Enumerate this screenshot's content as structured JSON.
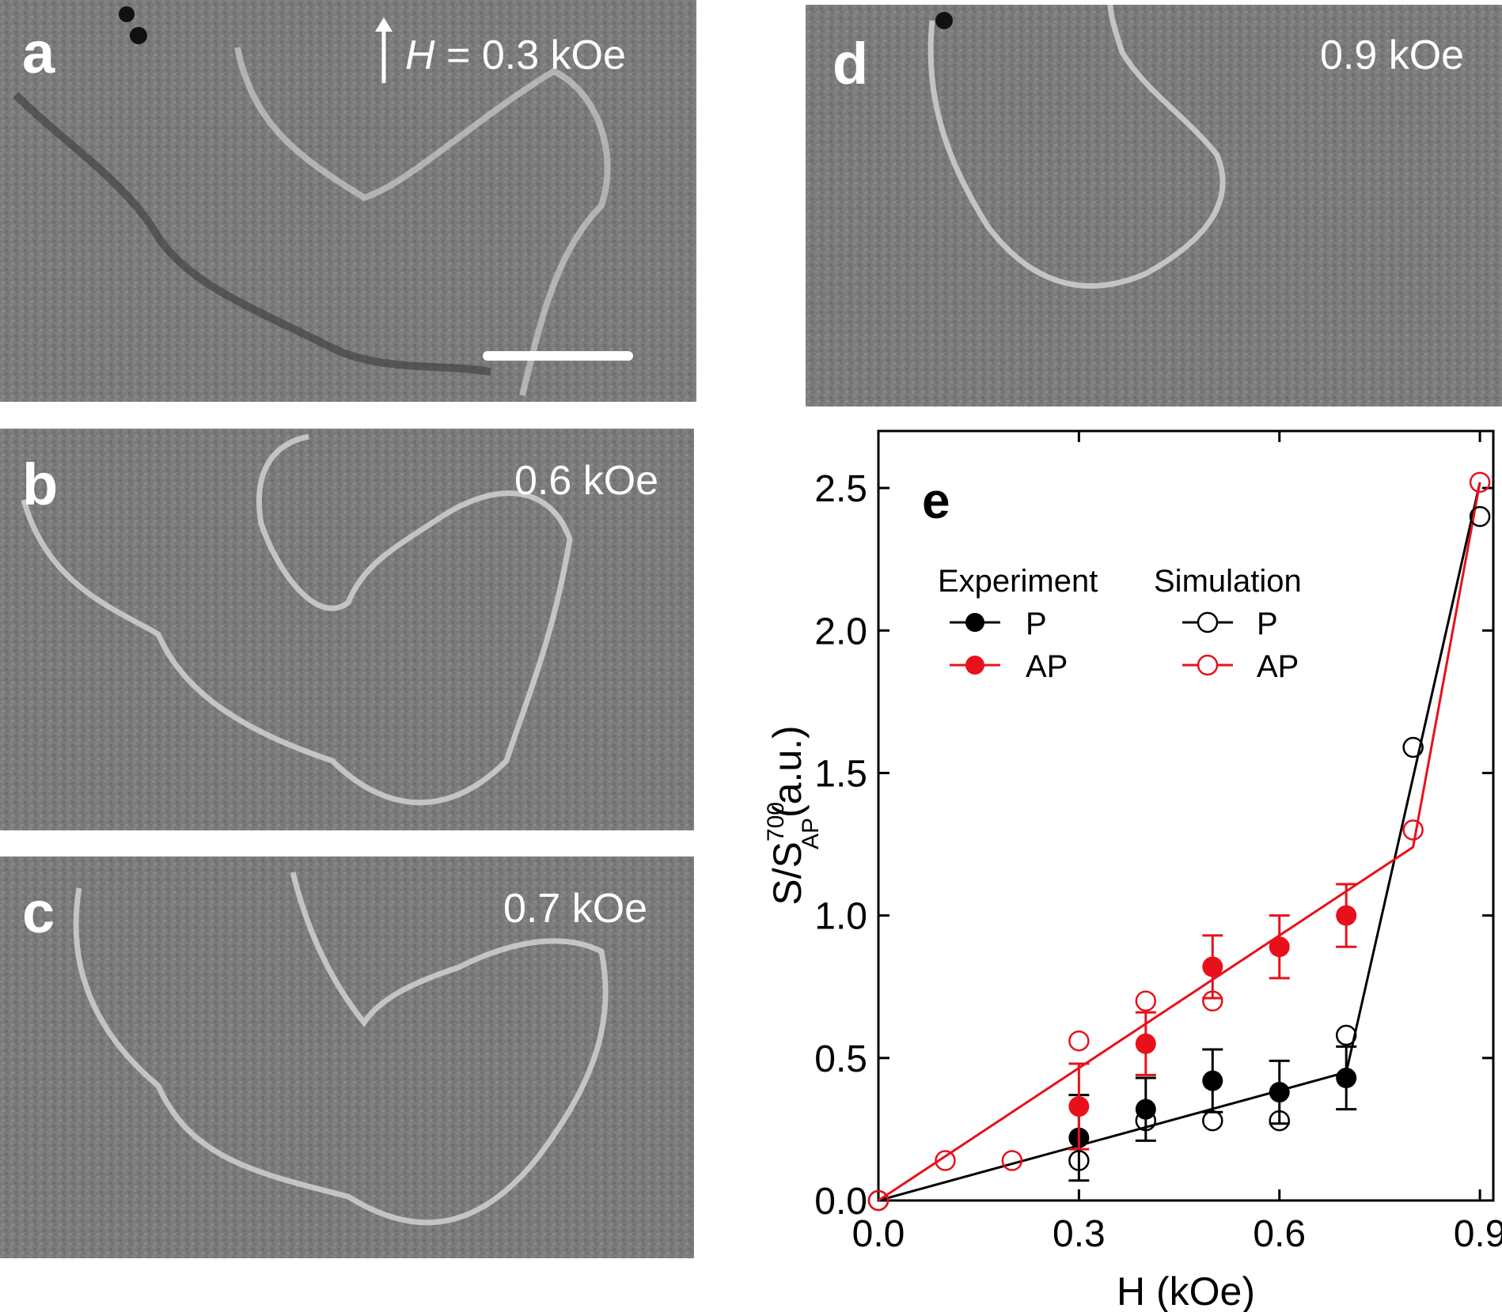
{
  "panels": {
    "a": {
      "label": "a",
      "field_symbol": "H",
      "field_eq": " = 0.3 kOe"
    },
    "b": {
      "label": "b",
      "field": "0.6 kOe"
    },
    "c": {
      "label": "c",
      "field": "0.7 kOe"
    },
    "d": {
      "label": "d",
      "field": "0.9 kOe"
    }
  },
  "chart_data": {
    "type": "scatter",
    "panel_label": "e",
    "xlabel": "H (kOe)",
    "ylabel_main": "S/S",
    "ylabel_sup": "700",
    "ylabel_sub": "AP",
    "ylabel_tail": "(a.u.)",
    "xlim": [
      0.0,
      0.92
    ],
    "ylim": [
      0.0,
      2.7
    ],
    "xticks": [
      0.0,
      0.3,
      0.6,
      0.9
    ],
    "xtick_labels": [
      "0.0",
      "0.3",
      "0.6",
      "0.9"
    ],
    "yticks": [
      0.0,
      0.5,
      1.0,
      1.5,
      2.0,
      2.5
    ],
    "ytick_labels": [
      "0.0",
      "0.5",
      "1.0",
      "1.5",
      "2.0",
      "2.5"
    ],
    "legend": {
      "experiment_title": "Experiment",
      "simulation_title": "Simulation",
      "p_label": "P",
      "ap_label": "AP"
    },
    "colors": {
      "P": "#000000",
      "AP": "#e8111b"
    },
    "series": [
      {
        "name": "Experiment P",
        "group": "experiment",
        "kind": "P",
        "filled": true,
        "x": [
          0.3,
          0.4,
          0.5,
          0.6,
          0.7
        ],
        "y": [
          0.22,
          0.32,
          0.42,
          0.38,
          0.43
        ],
        "err": [
          0.15,
          0.11,
          0.11,
          0.11,
          0.11
        ]
      },
      {
        "name": "Experiment AP",
        "group": "experiment",
        "kind": "AP",
        "filled": true,
        "x": [
          0.3,
          0.4,
          0.5,
          0.6,
          0.7
        ],
        "y": [
          0.33,
          0.55,
          0.82,
          0.89,
          1.0
        ],
        "err": [
          0.15,
          0.11,
          0.11,
          0.11,
          0.11
        ]
      },
      {
        "name": "Simulation P",
        "group": "simulation",
        "kind": "P",
        "filled": false,
        "x": [
          0.0,
          0.3,
          0.4,
          0.5,
          0.6,
          0.7,
          0.8,
          0.9
        ],
        "y": [
          0.0,
          0.14,
          0.28,
          0.28,
          0.28,
          0.58,
          1.59,
          2.4
        ]
      },
      {
        "name": "Simulation AP",
        "group": "simulation",
        "kind": "AP",
        "filled": false,
        "x": [
          0.0,
          0.1,
          0.2,
          0.3,
          0.4,
          0.5,
          0.8,
          0.9
        ],
        "y": [
          0.0,
          0.14,
          0.14,
          0.56,
          0.7,
          0.7,
          1.3,
          2.52
        ]
      }
    ],
    "fit_lines": [
      {
        "kind": "P",
        "x": [
          0.0,
          0.7,
          0.9
        ],
        "y": [
          0.0,
          0.45,
          2.52
        ]
      },
      {
        "kind": "AP",
        "x": [
          0.0,
          0.8,
          0.9
        ],
        "y": [
          0.0,
          1.24,
          2.52
        ]
      }
    ]
  }
}
